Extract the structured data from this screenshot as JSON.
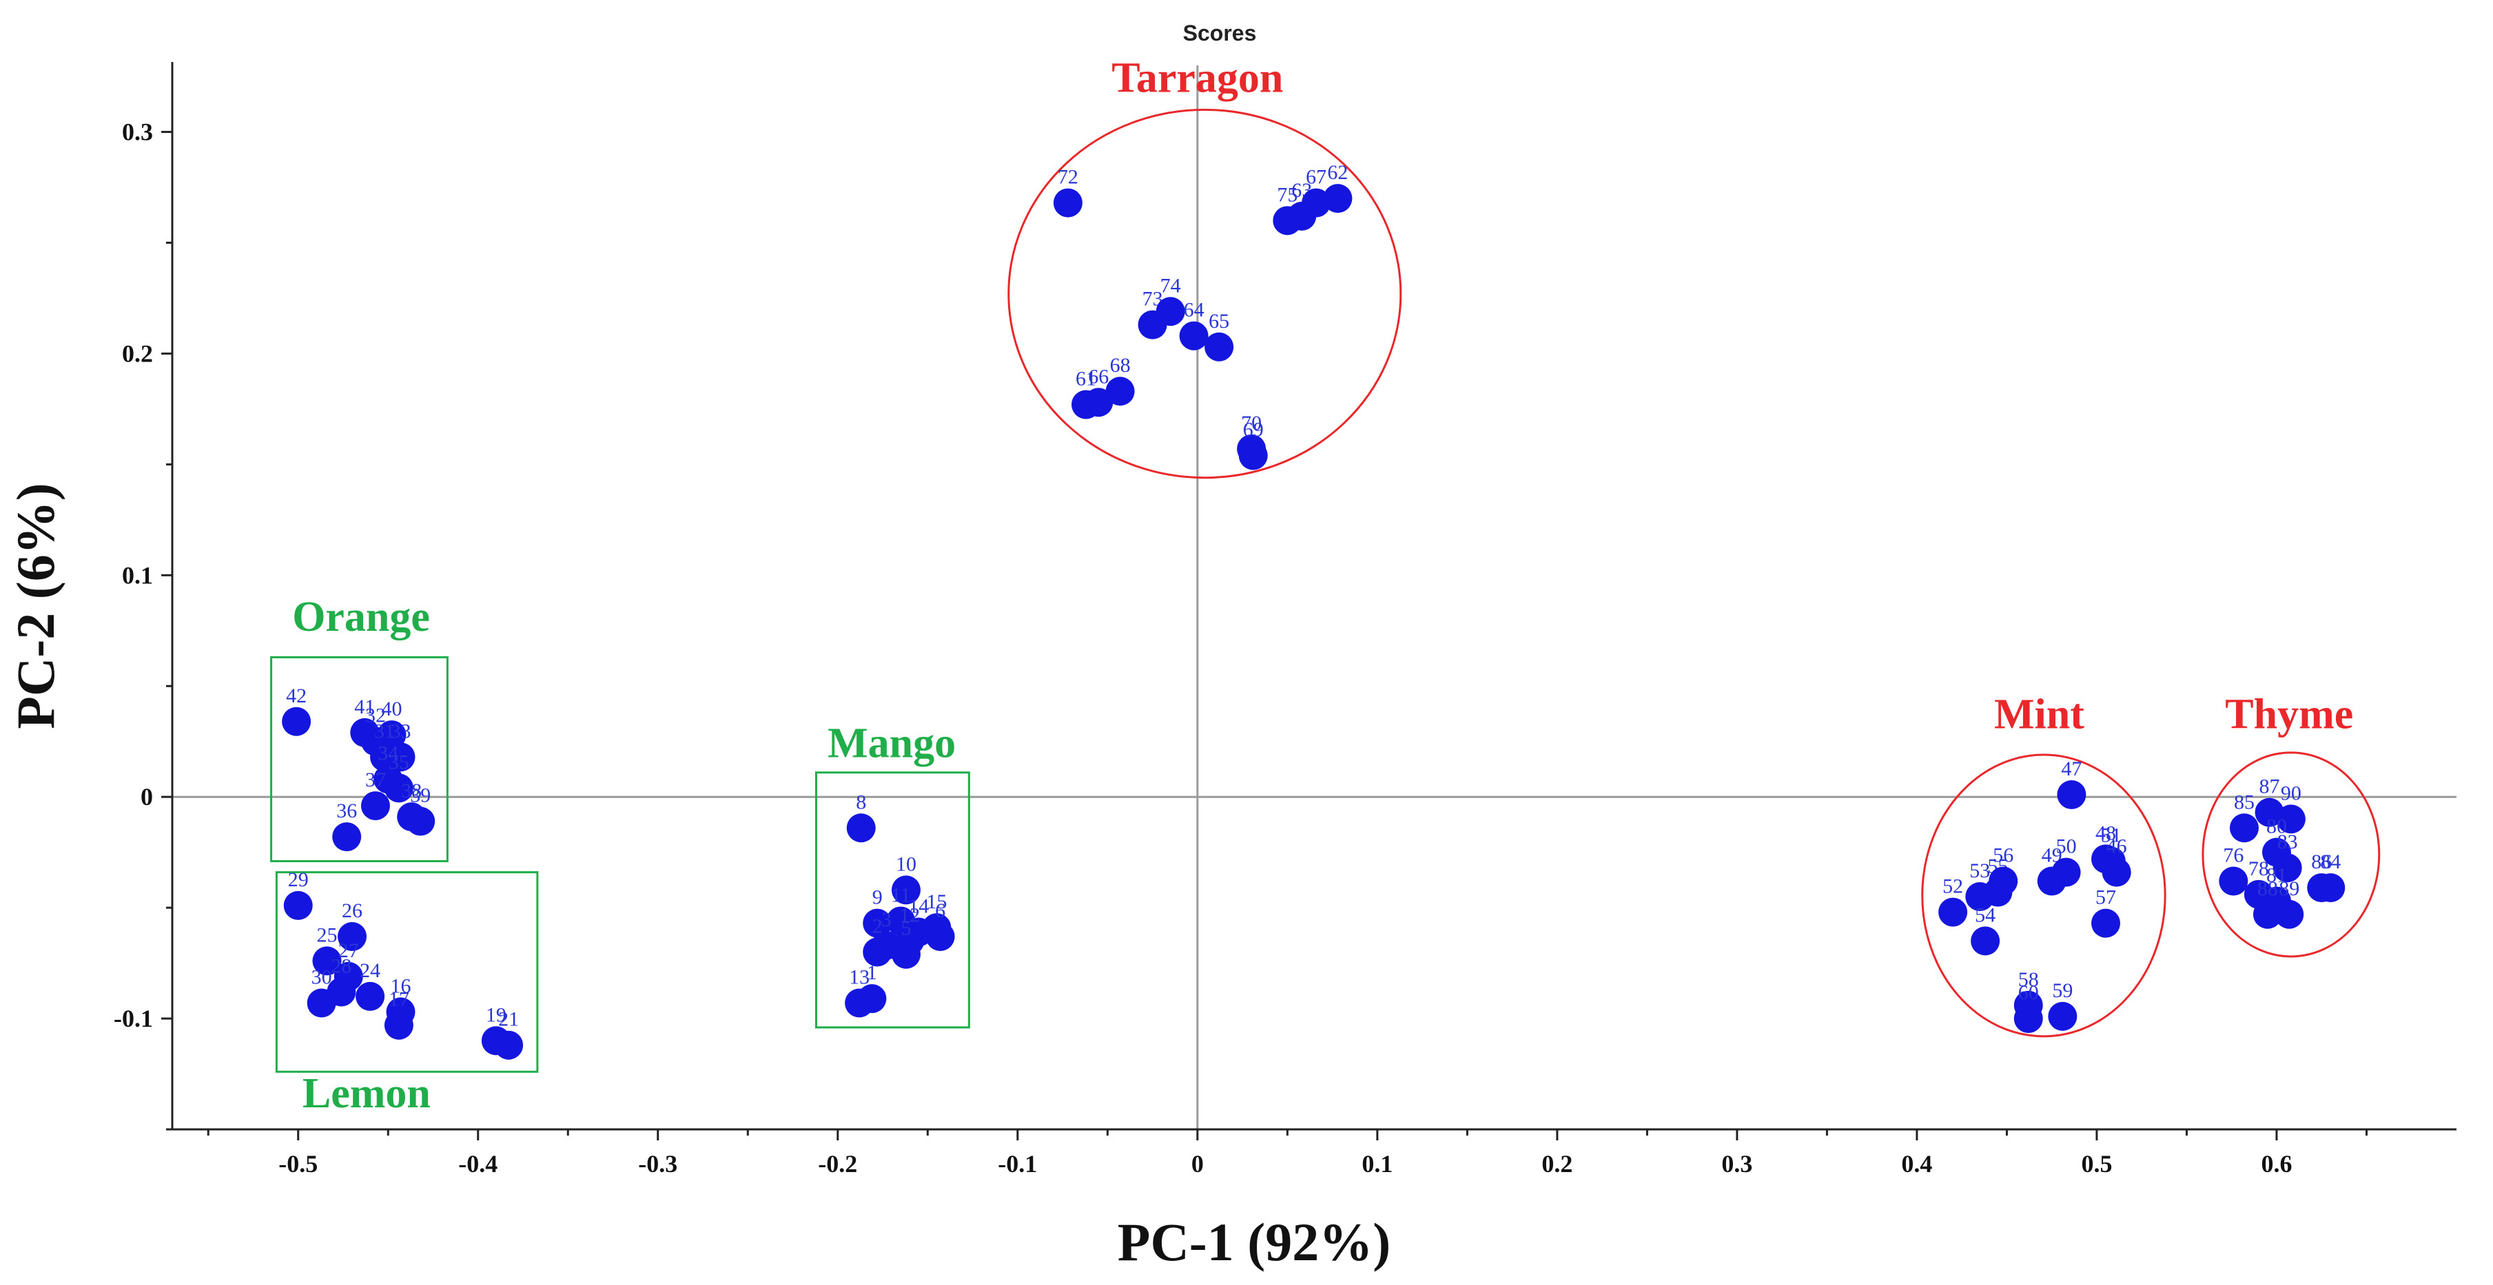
{
  "chart_data": {
    "type": "scatter",
    "title": "Scores",
    "xlabel": "PC-1 (92%)",
    "ylabel": "PC-2 (6%)",
    "xlim": [
      -0.57,
      0.7
    ],
    "ylim": [
      -0.15,
      0.33
    ],
    "xticks": [
      -0.5,
      -0.4,
      -0.3,
      -0.2,
      -0.1,
      0,
      0.1,
      0.2,
      0.3,
      0.4,
      0.5,
      0.6
    ],
    "xtick_labels": [
      "-0.5",
      "-0.4",
      "-0.3",
      "-0.2",
      "-0.1",
      "0",
      "0.1",
      "0.2",
      "0.3",
      "0.4",
      "0.5",
      "0.6"
    ],
    "yticks": [
      -0.1,
      0,
      0.1,
      0.2,
      0.3
    ],
    "ytick_labels": [
      "-0.1",
      "0",
      "0.1",
      "0.2",
      "0.3"
    ],
    "point_color": "#1515e0",
    "label_color": "#2a35d8",
    "groups": [
      {
        "name": "Orange",
        "color": "#1fae4a",
        "shape": "rect",
        "bounds": [
          -0.515,
          -0.417,
          -0.029,
          0.063
        ],
        "label_at": [
          -0.465,
          0.075
        ]
      },
      {
        "name": "Lemon",
        "color": "#1fae4a",
        "shape": "rect",
        "bounds": [
          -0.512,
          -0.367,
          -0.124,
          -0.034
        ],
        "label_at": [
          -0.462,
          -0.14
        ]
      },
      {
        "name": "Mango",
        "color": "#1fae4a",
        "shape": "rect",
        "bounds": [
          -0.212,
          -0.127,
          -0.104,
          0.011
        ],
        "label_at": [
          -0.17,
          0.018
        ]
      },
      {
        "name": "Tarragon",
        "color": "#e8282a",
        "shape": "ellipse",
        "bounds": [
          -0.105,
          0.113,
          0.144,
          0.31
        ],
        "label_at": [
          0.0,
          0.318
        ]
      },
      {
        "name": "Mint",
        "color": "#e8282a",
        "shape": "ellipse",
        "bounds": [
          0.403,
          0.538,
          -0.108,
          0.019
        ],
        "label_at": [
          0.468,
          0.031
        ]
      },
      {
        "name": "Thyme",
        "color": "#e8282a",
        "shape": "ellipse",
        "bounds": [
          0.559,
          0.657,
          -0.072,
          0.02
        ],
        "label_at": [
          0.607,
          0.031
        ]
      }
    ],
    "points": [
      {
        "label": "72",
        "x": -0.072,
        "y": 0.268
      },
      {
        "label": "75",
        "x": 0.05,
        "y": 0.26
      },
      {
        "label": "63",
        "x": 0.058,
        "y": 0.262
      },
      {
        "label": "67",
        "x": 0.066,
        "y": 0.268
      },
      {
        "label": "62",
        "x": 0.078,
        "y": 0.27
      },
      {
        "label": "73",
        "x": -0.025,
        "y": 0.213
      },
      {
        "label": "74",
        "x": -0.015,
        "y": 0.219
      },
      {
        "label": "64",
        "x": -0.002,
        "y": 0.208
      },
      {
        "label": "65",
        "x": 0.012,
        "y": 0.203
      },
      {
        "label": "61",
        "x": -0.062,
        "y": 0.177
      },
      {
        "label": "66",
        "x": -0.055,
        "y": 0.178
      },
      {
        "label": "68",
        "x": -0.043,
        "y": 0.183
      },
      {
        "label": "70",
        "x": 0.03,
        "y": 0.157
      },
      {
        "label": "69",
        "x": 0.031,
        "y": 0.154
      },
      {
        "label": "42",
        "x": -0.501,
        "y": 0.034
      },
      {
        "label": "41",
        "x": -0.463,
        "y": 0.029
      },
      {
        "label": "32",
        "x": -0.457,
        "y": 0.025
      },
      {
        "label": "40",
        "x": -0.448,
        "y": 0.028
      },
      {
        "label": "31",
        "x": -0.452,
        "y": 0.018
      },
      {
        "label": "33",
        "x": -0.443,
        "y": 0.018
      },
      {
        "label": "34",
        "x": -0.45,
        "y": 0.008
      },
      {
        "label": "35",
        "x": -0.444,
        "y": 0.004
      },
      {
        "label": "37",
        "x": -0.457,
        "y": -0.004
      },
      {
        "label": "38",
        "x": -0.437,
        "y": -0.009
      },
      {
        "label": "39",
        "x": -0.432,
        "y": -0.011
      },
      {
        "label": "36",
        "x": -0.473,
        "y": -0.018
      },
      {
        "label": "29",
        "x": -0.5,
        "y": -0.049
      },
      {
        "label": "26",
        "x": -0.47,
        "y": -0.063
      },
      {
        "label": "25",
        "x": -0.484,
        "y": -0.074
      },
      {
        "label": "27",
        "x": -0.472,
        "y": -0.081
      },
      {
        "label": "28",
        "x": -0.476,
        "y": -0.088
      },
      {
        "label": "24",
        "x": -0.46,
        "y": -0.09
      },
      {
        "label": "30",
        "x": -0.487,
        "y": -0.093
      },
      {
        "label": "16",
        "x": -0.443,
        "y": -0.097
      },
      {
        "label": "17",
        "x": -0.444,
        "y": -0.103
      },
      {
        "label": "19",
        "x": -0.39,
        "y": -0.11
      },
      {
        "label": "21",
        "x": -0.383,
        "y": -0.112
      },
      {
        "label": "8",
        "x": -0.187,
        "y": -0.014
      },
      {
        "label": "10",
        "x": -0.162,
        "y": -0.042
      },
      {
        "label": "9",
        "x": -0.178,
        "y": -0.057
      },
      {
        "label": "11",
        "x": -0.165,
        "y": -0.056
      },
      {
        "label": "14",
        "x": -0.155,
        "y": -0.061
      },
      {
        "label": "15",
        "x": -0.145,
        "y": -0.059
      },
      {
        "label": "12",
        "x": -0.16,
        "y": -0.065
      },
      {
        "label": "3",
        "x": -0.173,
        "y": -0.067
      },
      {
        "label": "5",
        "x": -0.162,
        "y": -0.071
      },
      {
        "label": "6",
        "x": -0.143,
        "y": -0.063
      },
      {
        "label": "2",
        "x": -0.178,
        "y": -0.07
      },
      {
        "label": "13",
        "x": -0.188,
        "y": -0.093
      },
      {
        "label": "1",
        "x": -0.181,
        "y": -0.091
      },
      {
        "label": "47",
        "x": 0.486,
        "y": 0.001
      },
      {
        "label": "52",
        "x": 0.42,
        "y": -0.052
      },
      {
        "label": "53",
        "x": 0.435,
        "y": -0.045
      },
      {
        "label": "55",
        "x": 0.445,
        "y": -0.043
      },
      {
        "label": "56",
        "x": 0.448,
        "y": -0.038
      },
      {
        "label": "54",
        "x": 0.438,
        "y": -0.065
      },
      {
        "label": "49",
        "x": 0.475,
        "y": -0.038
      },
      {
        "label": "50",
        "x": 0.483,
        "y": -0.034
      },
      {
        "label": "48",
        "x": 0.505,
        "y": -0.028
      },
      {
        "label": "51",
        "x": 0.508,
        "y": -0.029
      },
      {
        "label": "46",
        "x": 0.511,
        "y": -0.034
      },
      {
        "label": "57",
        "x": 0.505,
        "y": -0.057
      },
      {
        "label": "58",
        "x": 0.462,
        "y": -0.094
      },
      {
        "label": "60",
        "x": 0.462,
        "y": -0.1
      },
      {
        "label": "59",
        "x": 0.481,
        "y": -0.099
      },
      {
        "label": "85",
        "x": 0.582,
        "y": -0.014
      },
      {
        "label": "87",
        "x": 0.596,
        "y": -0.007
      },
      {
        "label": "90",
        "x": 0.608,
        "y": -0.01
      },
      {
        "label": "76",
        "x": 0.576,
        "y": -0.038
      },
      {
        "label": "80",
        "x": 0.6,
        "y": -0.025
      },
      {
        "label": "83",
        "x": 0.606,
        "y": -0.032
      },
      {
        "label": "86",
        "x": 0.625,
        "y": -0.041
      },
      {
        "label": "84",
        "x": 0.63,
        "y": -0.041
      },
      {
        "label": "78",
        "x": 0.59,
        "y": -0.044
      },
      {
        "label": "81",
        "x": 0.6,
        "y": -0.047
      },
      {
        "label": "88",
        "x": 0.595,
        "y": -0.053
      },
      {
        "label": "89",
        "x": 0.607,
        "y": -0.053
      }
    ]
  }
}
